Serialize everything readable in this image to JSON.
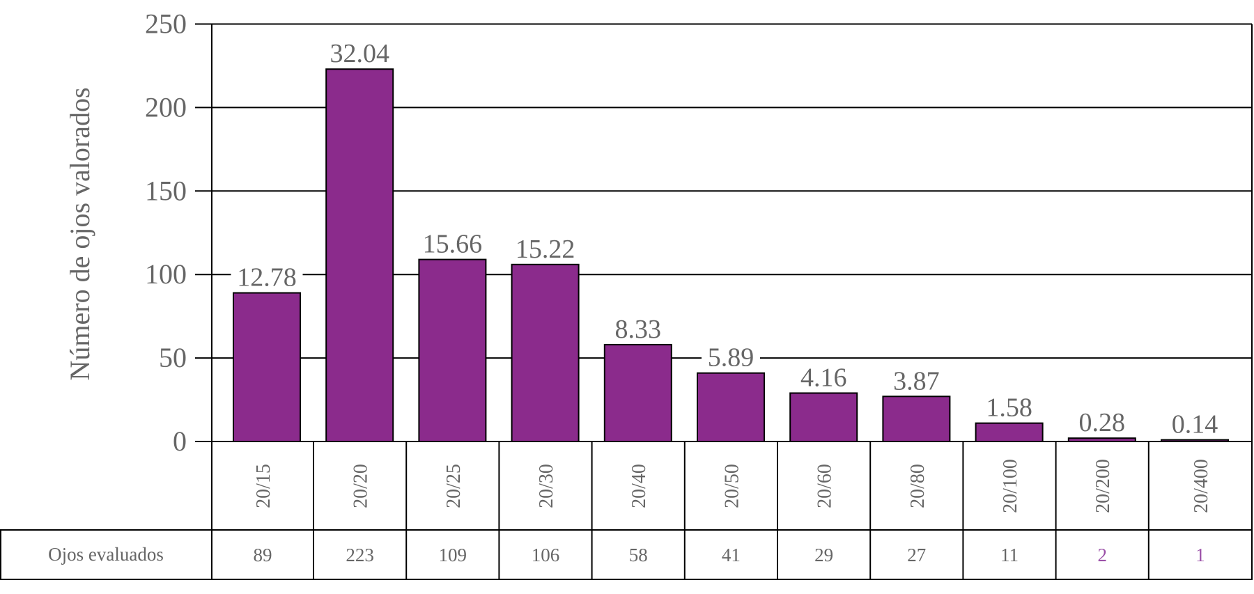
{
  "chart_data": {
    "type": "bar",
    "title": "",
    "xlabel": "",
    "ylabel": "Número de ojos valorados",
    "ylim": [
      0,
      250
    ],
    "yticks": [
      0,
      50,
      100,
      150,
      200,
      250
    ],
    "grid": true,
    "categories": [
      "20/15",
      "20/20",
      "20/25",
      "20/30",
      "20/40",
      "20/50",
      "20/60",
      "20/80",
      "20/100",
      "20/200",
      "20/400"
    ],
    "values": [
      89,
      223,
      109,
      106,
      58,
      41,
      29,
      27,
      11,
      2,
      1
    ],
    "data_labels": [
      "12.78",
      "32.04",
      "15.66",
      "15.22",
      "8.33",
      "5.89",
      "4.16",
      "3.87",
      "1.58",
      "0.28",
      "0.14"
    ],
    "table": {
      "row_label": "Ojos evaluados",
      "values": [
        "89",
        "223",
        "109",
        "106",
        "58",
        "41",
        "29",
        "27",
        "11",
        "2",
        "1"
      ],
      "highlighted": [
        false,
        false,
        false,
        false,
        false,
        false,
        false,
        false,
        false,
        true,
        true
      ]
    },
    "colors": {
      "bar": "#8B2B8C",
      "text": "#666666",
      "highlight_text": "#9B50A8"
    }
  }
}
